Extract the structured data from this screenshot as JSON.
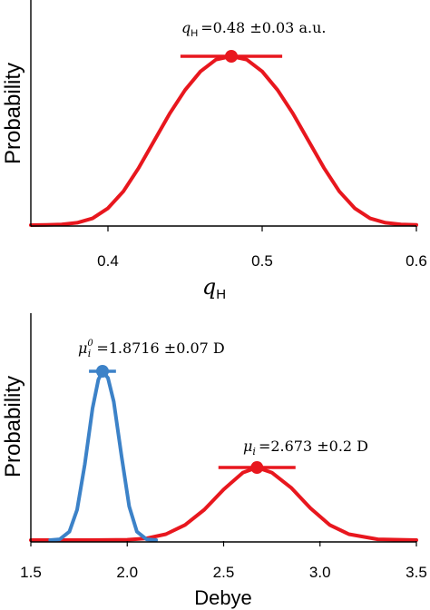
{
  "chart_data": [
    {
      "type": "line",
      "ylabel": "Probability",
      "xlabel_main": "q",
      "xlabel_sub": "H",
      "xlim": [
        0.35,
        0.6
      ],
      "xticks": [
        0.4,
        0.5,
        0.6
      ],
      "tick_labels": [
        "0.4",
        "0.5",
        "0.6"
      ],
      "grid": false,
      "series": [
        {
          "color": "#e8171e",
          "x": [
            0.35,
            0.36,
            0.37,
            0.38,
            0.39,
            0.4,
            0.41,
            0.42,
            0.43,
            0.44,
            0.45,
            0.46,
            0.47,
            0.48,
            0.49,
            0.5,
            0.51,
            0.52,
            0.53,
            0.54,
            0.55,
            0.56,
            0.57,
            0.58,
            0.59,
            0.6
          ],
          "y": [
            0.0,
            0.001,
            0.004,
            0.014,
            0.04,
            0.1,
            0.2,
            0.34,
            0.5,
            0.66,
            0.8,
            0.91,
            0.98,
            1.0,
            0.98,
            0.91,
            0.8,
            0.66,
            0.5,
            0.34,
            0.2,
            0.1,
            0.04,
            0.014,
            0.004,
            0.001
          ]
        }
      ],
      "markers": [
        {
          "x": 0.48,
          "y": 1.0,
          "err": 0.033,
          "color": "#e8171e"
        }
      ],
      "annotations": [
        {
          "sym": "q",
          "sub": "H",
          "sup": "",
          "text": "=0.48 ±0.03 a.u."
        }
      ]
    },
    {
      "type": "line",
      "ylabel": "Probability",
      "xlabel": "Debye",
      "xlim": [
        1.5,
        3.5
      ],
      "xticks": [
        1.5,
        2.0,
        2.5,
        3.0,
        3.5
      ],
      "tick_labels": [
        "1.5",
        "2.0",
        "2.5",
        "3.0",
        "3.5"
      ],
      "grid": false,
      "series": [
        {
          "color": "#e8171e",
          "x": [
            1.5,
            1.8,
            2.0,
            2.1,
            2.2,
            2.3,
            2.4,
            2.5,
            2.6,
            2.673,
            2.75,
            2.85,
            2.95,
            3.05,
            3.15,
            3.3,
            3.5
          ],
          "y": [
            0.0,
            0.0,
            0.002,
            0.01,
            0.035,
            0.09,
            0.18,
            0.3,
            0.4,
            0.43,
            0.4,
            0.31,
            0.19,
            0.09,
            0.035,
            0.005,
            0.0
          ]
        },
        {
          "color": "#3c82c8",
          "x": [
            1.6,
            1.65,
            1.7,
            1.74,
            1.78,
            1.82,
            1.85,
            1.8716,
            1.9,
            1.93,
            1.97,
            2.01,
            2.05,
            2.1,
            2.15
          ],
          "y": [
            0.0,
            0.005,
            0.05,
            0.18,
            0.45,
            0.78,
            0.95,
            1.0,
            0.96,
            0.82,
            0.5,
            0.2,
            0.05,
            0.005,
            0.0
          ]
        }
      ],
      "markers": [
        {
          "x": 1.8716,
          "y": 1.0,
          "err": 0.07,
          "color": "#3c82c8"
        },
        {
          "x": 2.673,
          "y": 0.43,
          "err": 0.2,
          "color": "#e8171e"
        }
      ],
      "annotations": [
        {
          "sym": "μ",
          "sub": "i",
          "sup": "0",
          "text": "=1.8716 ±0.07 D"
        },
        {
          "sym": "μ",
          "sub": "i",
          "sup": "",
          "text": "=2.673 ±0.2 D"
        }
      ]
    }
  ]
}
